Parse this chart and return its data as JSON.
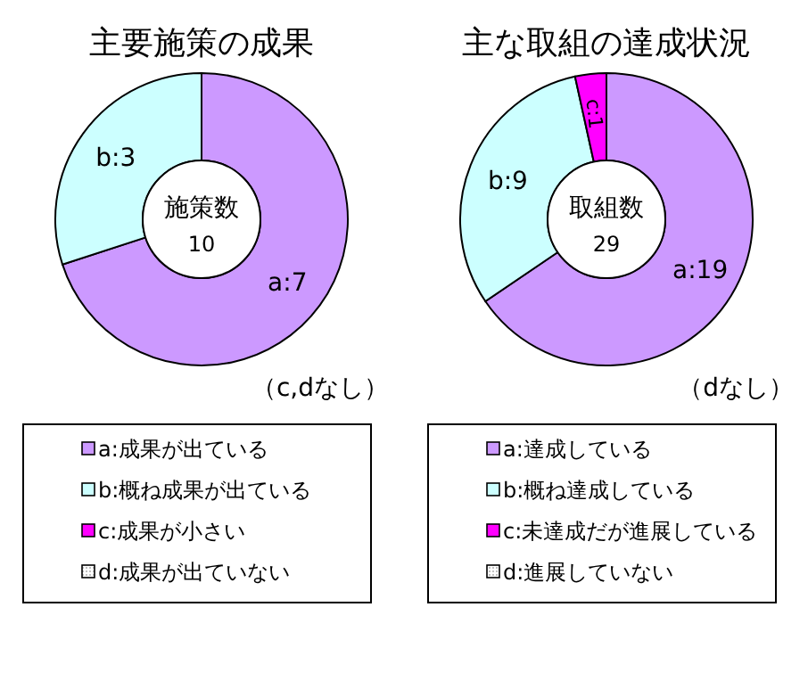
{
  "chart_data": [
    {
      "type": "donut",
      "title": "主要施策の成果",
      "categories": [
        "a:成果が出ている",
        "b:概ね成果が出ている",
        "c:成果が小さい",
        "d:成果が出ていない"
      ],
      "values": [
        7,
        3,
        0,
        0
      ],
      "colors": [
        "#cc99ff",
        "#ccffff",
        "#ff00ff",
        "#c0c0c0"
      ],
      "value_labels": [
        "a:7",
        "b:3",
        null,
        null
      ],
      "annotations": [
        "施策数",
        "10",
        "（c,dなし）"
      ],
      "legend": "bottom"
    },
    {
      "type": "donut",
      "title": "主な取組の達成状況",
      "categories": [
        "a:達成している",
        "b:概ね達成している",
        "c:未達成だが進展している",
        "d:進展していない"
      ],
      "values": [
        19,
        9,
        1,
        0
      ],
      "colors": [
        "#cc99ff",
        "#ccffff",
        "#ff00ff",
        "#c0c0c0"
      ],
      "value_labels": [
        "a:19",
        "b:9",
        "c:1",
        null
      ],
      "annotations": [
        "取組数",
        "29",
        "（dなし）"
      ],
      "legend": "bottom"
    }
  ]
}
